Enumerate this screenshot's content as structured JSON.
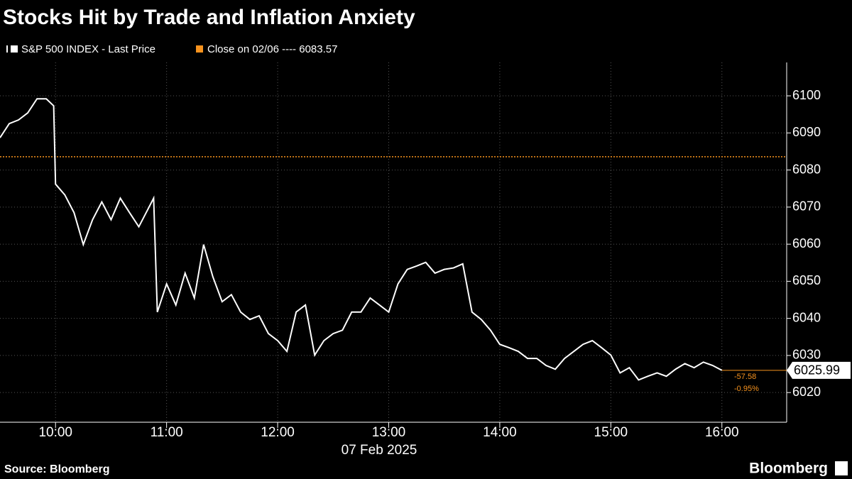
{
  "chart_data": {
    "type": "line",
    "title": "Stocks Hit by Trade and Inflation Anxiety",
    "x_label": "07 Feb 2025",
    "source": "Source: Bloomberg",
    "brand": "Bloomberg",
    "x": [
      570,
      575,
      580,
      585,
      590,
      595,
      599,
      600,
      605,
      610,
      615,
      620,
      625,
      630,
      635,
      640,
      645,
      650,
      653,
      655,
      660,
      665,
      670,
      675,
      680,
      685,
      690,
      695,
      700,
      705,
      710,
      715,
      720,
      725,
      730,
      735,
      740,
      745,
      750,
      755,
      760,
      765,
      770,
      775,
      780,
      785,
      790,
      795,
      800,
      805,
      810,
      815,
      820,
      825,
      830,
      835,
      840,
      845,
      850,
      855,
      860,
      865,
      870,
      875,
      880,
      885,
      890,
      895,
      900,
      905,
      910,
      915,
      920,
      925,
      930,
      935,
      940,
      945,
      950,
      955,
      960
    ],
    "series": [
      {
        "name": "S&P 500 INDEX - Last Price",
        "color": "#ffffff",
        "values": [
          6088.7,
          6092.5,
          6093.5,
          6095.4,
          6099.2,
          6099.2,
          6097.3,
          6076.2,
          6073.3,
          6068.5,
          6059.9,
          6066.6,
          6071.4,
          6066.6,
          6072.4,
          6068.5,
          6064.7,
          6069.5,
          6072.4,
          6041.7,
          6049.3,
          6043.6,
          6052.2,
          6045.5,
          6059.9,
          6051.2,
          6044.5,
          6046.4,
          6041.7,
          6039.7,
          6040.7,
          6035.9,
          6034.0,
          6031.1,
          6041.7,
          6043.6,
          6030.1,
          6034.0,
          6035.9,
          6036.8,
          6041.7,
          6041.7,
          6045.5,
          6043.6,
          6041.7,
          6049.3,
          6053.2,
          6054.1,
          6055.1,
          6052.2,
          6053.2,
          6053.6,
          6054.7,
          6041.7,
          6039.7,
          6036.8,
          6033.0,
          6032.1,
          6031.1,
          6029.2,
          6029.2,
          6027.3,
          6026.3,
          6029.2,
          6031.1,
          6033.0,
          6034.0,
          6032.1,
          6030.1,
          6025.3,
          6026.7,
          6023.4,
          6024.4,
          6025.3,
          6024.4,
          6026.3,
          6027.8,
          6026.7,
          6028.2,
          6027.3,
          6025.99
        ]
      }
    ],
    "reference_line": {
      "name": "Close on 02/06 ----",
      "value": 6083.57,
      "color": "#f7931e"
    },
    "last_price": 6025.99,
    "change": -57.58,
    "change_pct": {
      "value": -0.95,
      "label": "-0.95%"
    },
    "xlim": [
      570,
      995
    ],
    "xticks": [
      {
        "value": 600,
        "label": "10:00"
      },
      {
        "value": 660,
        "label": "11:00"
      },
      {
        "value": 720,
        "label": "12:00"
      },
      {
        "value": 780,
        "label": "13:00"
      },
      {
        "value": 840,
        "label": "14:00"
      },
      {
        "value": 900,
        "label": "15:00"
      },
      {
        "value": 960,
        "label": "16:00"
      }
    ],
    "ylim": [
      6012,
      6109
    ],
    "yticks": [
      6020,
      6030,
      6040,
      6050,
      6060,
      6070,
      6080,
      6090,
      6100
    ],
    "grid": true
  }
}
